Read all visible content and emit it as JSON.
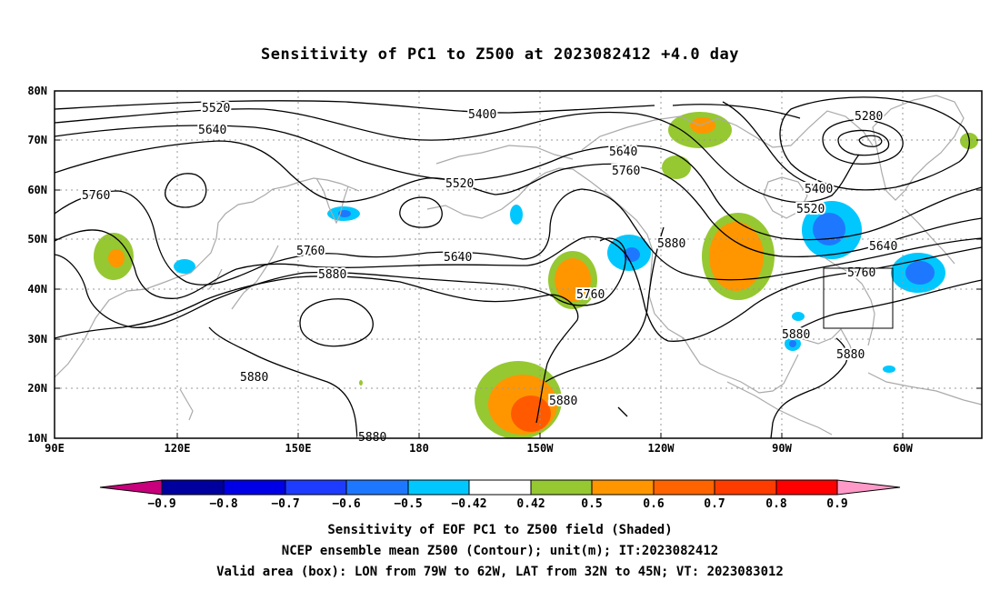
{
  "title": "Sensitivity of PC1 to Z500 at 2023082412 +4.0 day",
  "lat_labels": [
    "80N",
    "70N",
    "60N",
    "50N",
    "40N",
    "30N",
    "20N",
    "10N"
  ],
  "lon_labels": [
    "90E",
    "120E",
    "150E",
    "180",
    "150W",
    "120W",
    "90W",
    "60W"
  ],
  "contour_labels": [
    {
      "text": "5520"
    },
    {
      "text": "5640"
    },
    {
      "text": "5760"
    },
    {
      "text": "5400"
    },
    {
      "text": "5280"
    },
    {
      "text": "5640"
    },
    {
      "text": "5760"
    },
    {
      "text": "5520"
    },
    {
      "text": "5400"
    },
    {
      "text": "5520"
    },
    {
      "text": "5640"
    },
    {
      "text": "5760"
    },
    {
      "text": "5880"
    },
    {
      "text": "5760"
    },
    {
      "text": "5880"
    },
    {
      "text": "5640"
    },
    {
      "text": "5760"
    },
    {
      "text": "5880"
    },
    {
      "text": "5880"
    },
    {
      "text": "5880"
    },
    {
      "text": "5880"
    },
    {
      "text": "5880"
    }
  ],
  "colorbar": {
    "labels": [
      "−0.9",
      "−0.8",
      "−0.7",
      "−0.6",
      "−0.5",
      "−0.42",
      "0.42",
      "0.5",
      "0.6",
      "0.7",
      "0.8",
      "0.9"
    ],
    "colors": {
      "below_min": "#c8007c",
      "bins": [
        "#00009e",
        "#0000e6",
        "#1e3cff",
        "#1e78ff",
        "#00c8ff",
        "#ffffff",
        "#96c832",
        "#ff9600",
        "#ff6400",
        "#ff3c00",
        "#ff0000"
      ],
      "above_max": "#ff9ac8"
    }
  },
  "colors": {
    "contour": "#000000",
    "coastline": "#aaaaaa",
    "grid": "#999999",
    "green": "#96c832",
    "orange": "#ff9600",
    "red_orange": "#ff5a00",
    "cyan": "#00c8ff",
    "blue": "#1e78ff"
  },
  "captions": [
    "Sensitivity of EOF PC1 to Z500 field (Shaded)",
    "NCEP ensemble mean Z500 (Contour); unit(m); IT:2023082412",
    "Valid area (box): LON from 79W to 62W, LAT from 32N to 45N; VT: 2023083012"
  ]
}
